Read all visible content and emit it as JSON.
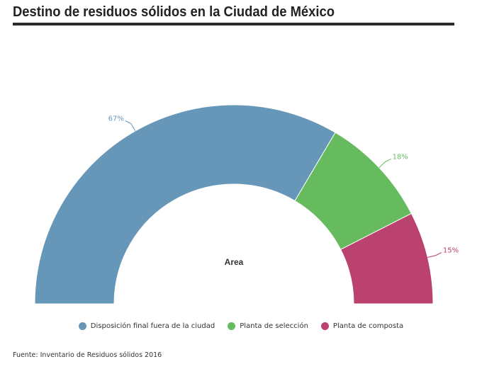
{
  "title": "Destino de residuos sólidos en la Ciudad de México",
  "source": "Fuente: Inventario de Residuos sólidos 2016",
  "chart_data": {
    "type": "pie",
    "variant": "semi-donut",
    "center_label": "Area",
    "legend_position": "bottom",
    "series": [
      {
        "name": "Disposición final fuera de la ciudad",
        "value": 67,
        "label": "67%",
        "color": "#6697b9"
      },
      {
        "name": "Planta de selección",
        "value": 18,
        "label": "18%",
        "color": "#66bb5f"
      },
      {
        "name": "Planta de composta",
        "value": 15,
        "label": "15%",
        "color": "#bb416f"
      }
    ]
  }
}
